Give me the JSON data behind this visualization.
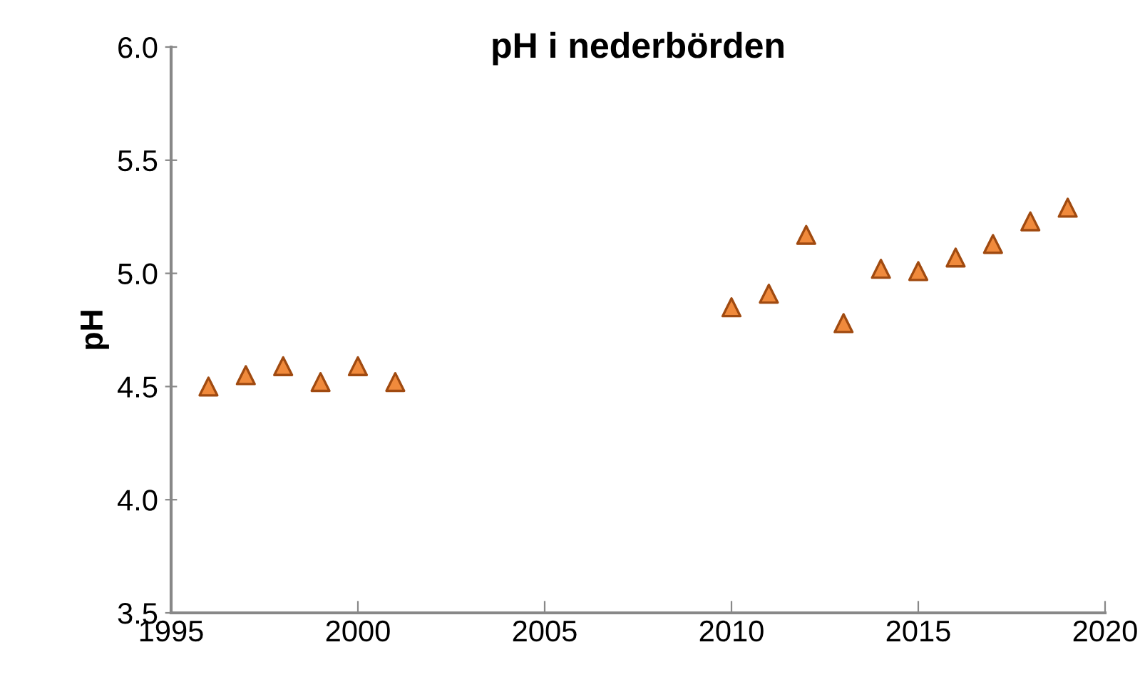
{
  "chart_data": {
    "type": "scatter",
    "title": "pH i nederbörden",
    "ylabel": "pH",
    "x": [
      1996,
      1997,
      1998,
      1999,
      2000,
      2001,
      2010,
      2011,
      2012,
      2013,
      2014,
      2015,
      2016,
      2017,
      2018,
      2019
    ],
    "series": [
      {
        "color": "#f08a3c",
        "values": [
          4.5,
          4.55,
          4.59,
          4.52,
          4.59,
          4.52,
          4.85,
          4.91,
          5.17,
          4.78,
          5.02,
          5.01,
          5.07,
          5.13,
          5.23,
          5.29
        ]
      }
    ],
    "marker": "triangle",
    "xlim": [
      1995,
      2020
    ],
    "xticks": [
      1995,
      2000,
      2005,
      2010,
      2015,
      2020
    ],
    "ylim": [
      3.5,
      6.0
    ],
    "yticks": [
      {
        "value": 3.5,
        "label": "3.5"
      },
      {
        "value": 4.0,
        "label": "4.0"
      },
      {
        "value": 4.5,
        "label": "4.5"
      },
      {
        "value": 5.0,
        "label": "5.0"
      },
      {
        "value": 5.5,
        "label": "5.5"
      },
      {
        "value": 6.0,
        "label": "6.0"
      }
    ],
    "grid": false,
    "legend": false
  }
}
